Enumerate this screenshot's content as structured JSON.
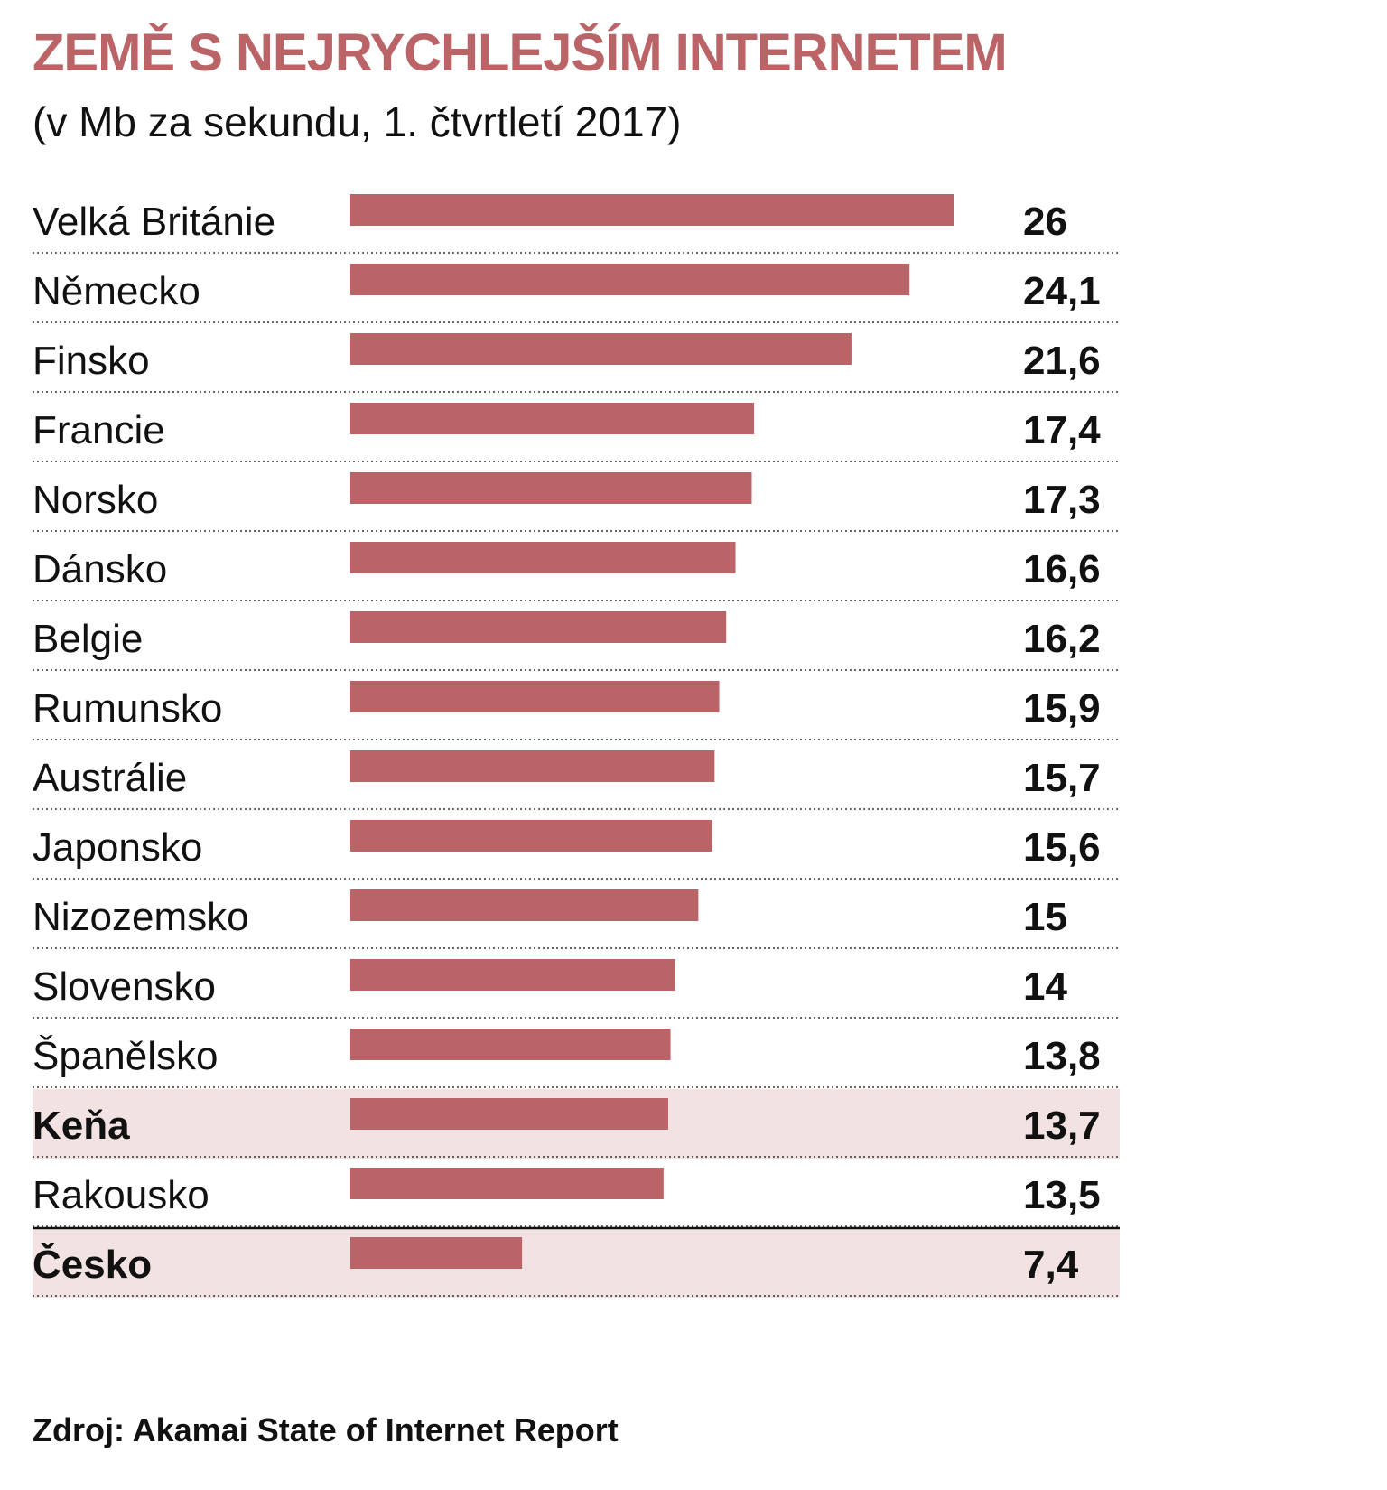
{
  "colors": {
    "title": "#bb6468",
    "bar": "#bb6468",
    "highlight_band": "#f2e2e1",
    "text": "#111111",
    "separator": "#111111"
  },
  "chart_data": {
    "type": "bar",
    "orientation": "horizontal",
    "title": "ZEMĚ S NEJRYCHLEJŠÍM INTERNETEM",
    "subtitle": "(v Mb za sekundu, 1. čtvrtletí 2017)",
    "xlim": [
      0,
      26
    ],
    "grid": false,
    "legend": "none",
    "categories": [
      "Velká Británie",
      "Německo",
      "Finsko",
      "Francie",
      "Norsko",
      "Dánsko",
      "Belgie",
      "Rumunsko",
      "Austrálie",
      "Japonsko",
      "Nizozemsko",
      "Slovensko",
      "Španělsko",
      "Keňa",
      "Rakousko",
      "Česko"
    ],
    "values": [
      26,
      24.1,
      21.6,
      17.4,
      17.3,
      16.6,
      16.2,
      15.9,
      15.7,
      15.6,
      15,
      14,
      13.8,
      13.7,
      13.5,
      7.4
    ],
    "value_labels": [
      "26",
      "24,1",
      "21,6",
      "17,4",
      "17,3",
      "16,6",
      "16,2",
      "15,9",
      "15,7",
      "15,6",
      "15",
      "14",
      "13,8",
      "13,7",
      "13,5",
      "7,4"
    ],
    "highlighted": [
      "Keňa",
      "Česko"
    ],
    "separator_before": "Česko"
  },
  "source": "Zdroj: Akamai State of Internet Report"
}
